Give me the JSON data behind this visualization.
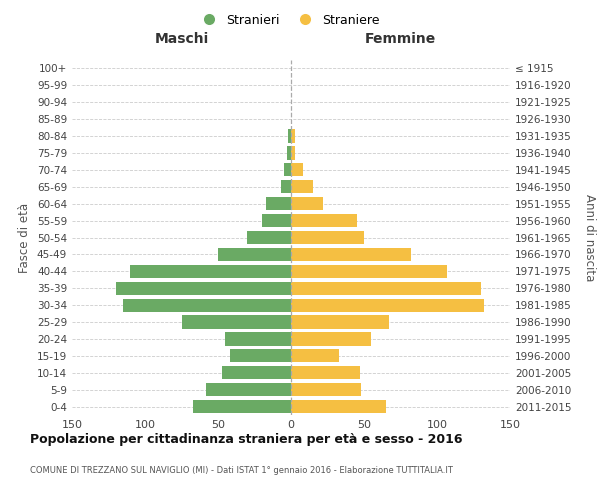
{
  "age_groups": [
    "0-4",
    "5-9",
    "10-14",
    "15-19",
    "20-24",
    "25-29",
    "30-34",
    "35-39",
    "40-44",
    "45-49",
    "50-54",
    "55-59",
    "60-64",
    "65-69",
    "70-74",
    "75-79",
    "80-84",
    "85-89",
    "90-94",
    "95-99",
    "100+"
  ],
  "birth_years": [
    "2011-2015",
    "2006-2010",
    "2001-2005",
    "1996-2000",
    "1991-1995",
    "1986-1990",
    "1981-1985",
    "1976-1980",
    "1971-1975",
    "1966-1970",
    "1961-1965",
    "1956-1960",
    "1951-1955",
    "1946-1950",
    "1941-1945",
    "1936-1940",
    "1931-1935",
    "1926-1930",
    "1921-1925",
    "1916-1920",
    "≤ 1915"
  ],
  "maschi": [
    67,
    58,
    47,
    42,
    45,
    75,
    115,
    120,
    110,
    50,
    30,
    20,
    17,
    7,
    5,
    3,
    2,
    0,
    0,
    0,
    0
  ],
  "femmine": [
    65,
    48,
    47,
    33,
    55,
    67,
    132,
    130,
    107,
    82,
    50,
    45,
    22,
    15,
    8,
    3,
    3,
    0,
    0,
    0,
    0
  ],
  "color_maschi": "#6aaa64",
  "color_femmine": "#f5bf42",
  "title": "Popolazione per cittadinanza straniera per età e sesso - 2016",
  "subtitle": "COMUNE DI TREZZANO SUL NAVIGLIO (MI) - Dati ISTAT 1° gennaio 2016 - Elaborazione TUTTITALIA.IT",
  "ylabel_left": "Fasce di età",
  "ylabel_right": "Anni di nascita",
  "xlabel_maschi": "Maschi",
  "xlabel_femmine": "Femmine",
  "legend_maschi": "Stranieri",
  "legend_femmine": "Straniere",
  "xlim": 150,
  "background_color": "#ffffff",
  "grid_color": "#cccccc"
}
